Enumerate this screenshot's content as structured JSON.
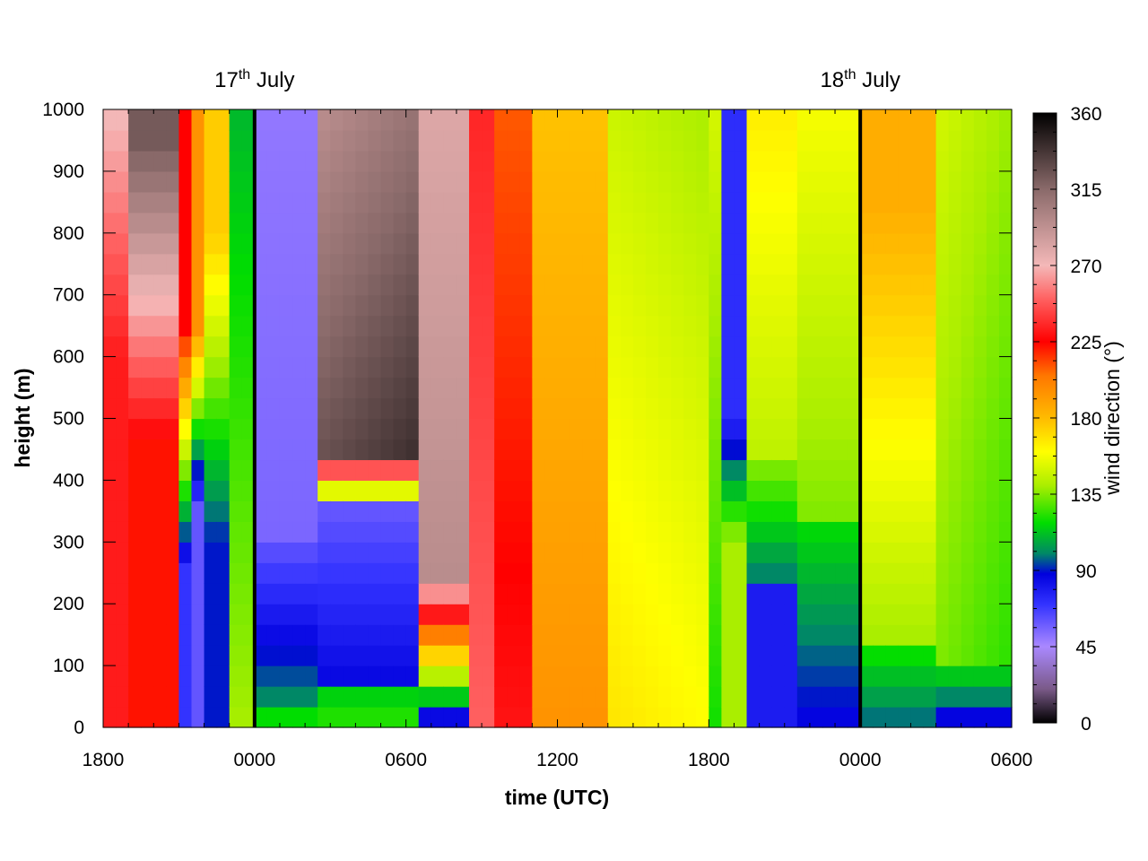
{
  "chart_data": {
    "type": "heatmap",
    "xlabel": "time (UTC)",
    "ylabel": "height (m)",
    "colorbar_label": "wind direction (°)",
    "xlim_hours": [
      0,
      36
    ],
    "ylim": [
      0,
      1000
    ],
    "x_tick_labels": [
      "1800",
      "0000",
      "0600",
      "1200",
      "1800",
      "0000",
      "0600"
    ],
    "y_tick_labels": [
      "0",
      "100",
      "200",
      "300",
      "400",
      "500",
      "600",
      "700",
      "800",
      "900",
      "1000"
    ],
    "colorbar_range": [
      0,
      360
    ],
    "colorbar_tick_labels": [
      "0",
      "45",
      "90",
      "135",
      "180",
      "225",
      "270",
      "315",
      "360"
    ],
    "day_markers": [
      {
        "day": "17",
        "suffix": "th",
        "month": "July",
        "hour": 6
      },
      {
        "day": "18",
        "suffix": "th",
        "month": "July",
        "hour": 30
      }
    ],
    "colorscale": [
      {
        "deg": 0,
        "color": "#000000"
      },
      {
        "deg": 20,
        "color": "#7a5a88"
      },
      {
        "deg": 45,
        "color": "#aa88ff"
      },
      {
        "deg": 70,
        "color": "#3333ff"
      },
      {
        "deg": 88,
        "color": "#0000dd"
      },
      {
        "deg": 100,
        "color": "#008866"
      },
      {
        "deg": 118,
        "color": "#00dd00"
      },
      {
        "deg": 140,
        "color": "#aaee00"
      },
      {
        "deg": 160,
        "color": "#ffff00"
      },
      {
        "deg": 180,
        "color": "#ffbb00"
      },
      {
        "deg": 205,
        "color": "#ff7700"
      },
      {
        "deg": 225,
        "color": "#ff0000"
      },
      {
        "deg": 250,
        "color": "#ff6060"
      },
      {
        "deg": 270,
        "color": "#f4b8b8"
      },
      {
        "deg": 315,
        "color": "#8a6a6a"
      },
      {
        "deg": 360,
        "color": "#000000"
      }
    ],
    "grid_columns": 72,
    "grid_rows": 30,
    "wind_direction_segments_deg": [
      {
        "t_start": 0.0,
        "t_end": 1.0,
        "profile": "lower 230, upper 270"
      },
      {
        "t_start": 1.0,
        "t_end": 3.0,
        "profile": "lower 225, upper 320"
      },
      {
        "t_start": 3.0,
        "t_end": 4.0,
        "profile": "lower 40, upper 225"
      },
      {
        "t_start": 4.0,
        "t_end": 5.5,
        "profile": "lower 70, upper 190"
      },
      {
        "t_start": 5.5,
        "t_end": 6.0,
        "profile": "lower 160, upper 90"
      },
      {
        "t_start": 6.0,
        "t_end": 8.5,
        "profile": "lower 110, mid 70, upper 55"
      },
      {
        "t_start": 8.5,
        "t_end": 12.5,
        "profile": "lower 120, mid 55, upper 300"
      },
      {
        "t_start": 12.5,
        "t_end": 14.5,
        "profile": "lower 70, upper 290"
      },
      {
        "t_start": 14.5,
        "t_end": 17.0,
        "profile": "lower 235, upper 200"
      },
      {
        "t_start": 17.0,
        "t_end": 20.0,
        "profile": "lower 190, upper 180"
      },
      {
        "t_start": 20.0,
        "t_end": 24.0,
        "profile": "lower 160, upper 155"
      },
      {
        "t_start": 24.0,
        "t_end": 27.0,
        "profile": "lower 75, mid 70, upper 80"
      },
      {
        "t_start": 27.0,
        "t_end": 30.0,
        "profile": "lower 90, upper 150"
      },
      {
        "t_start": 30.0,
        "t_end": 36.0,
        "profile": "lower 120, upper 175"
      }
    ]
  }
}
